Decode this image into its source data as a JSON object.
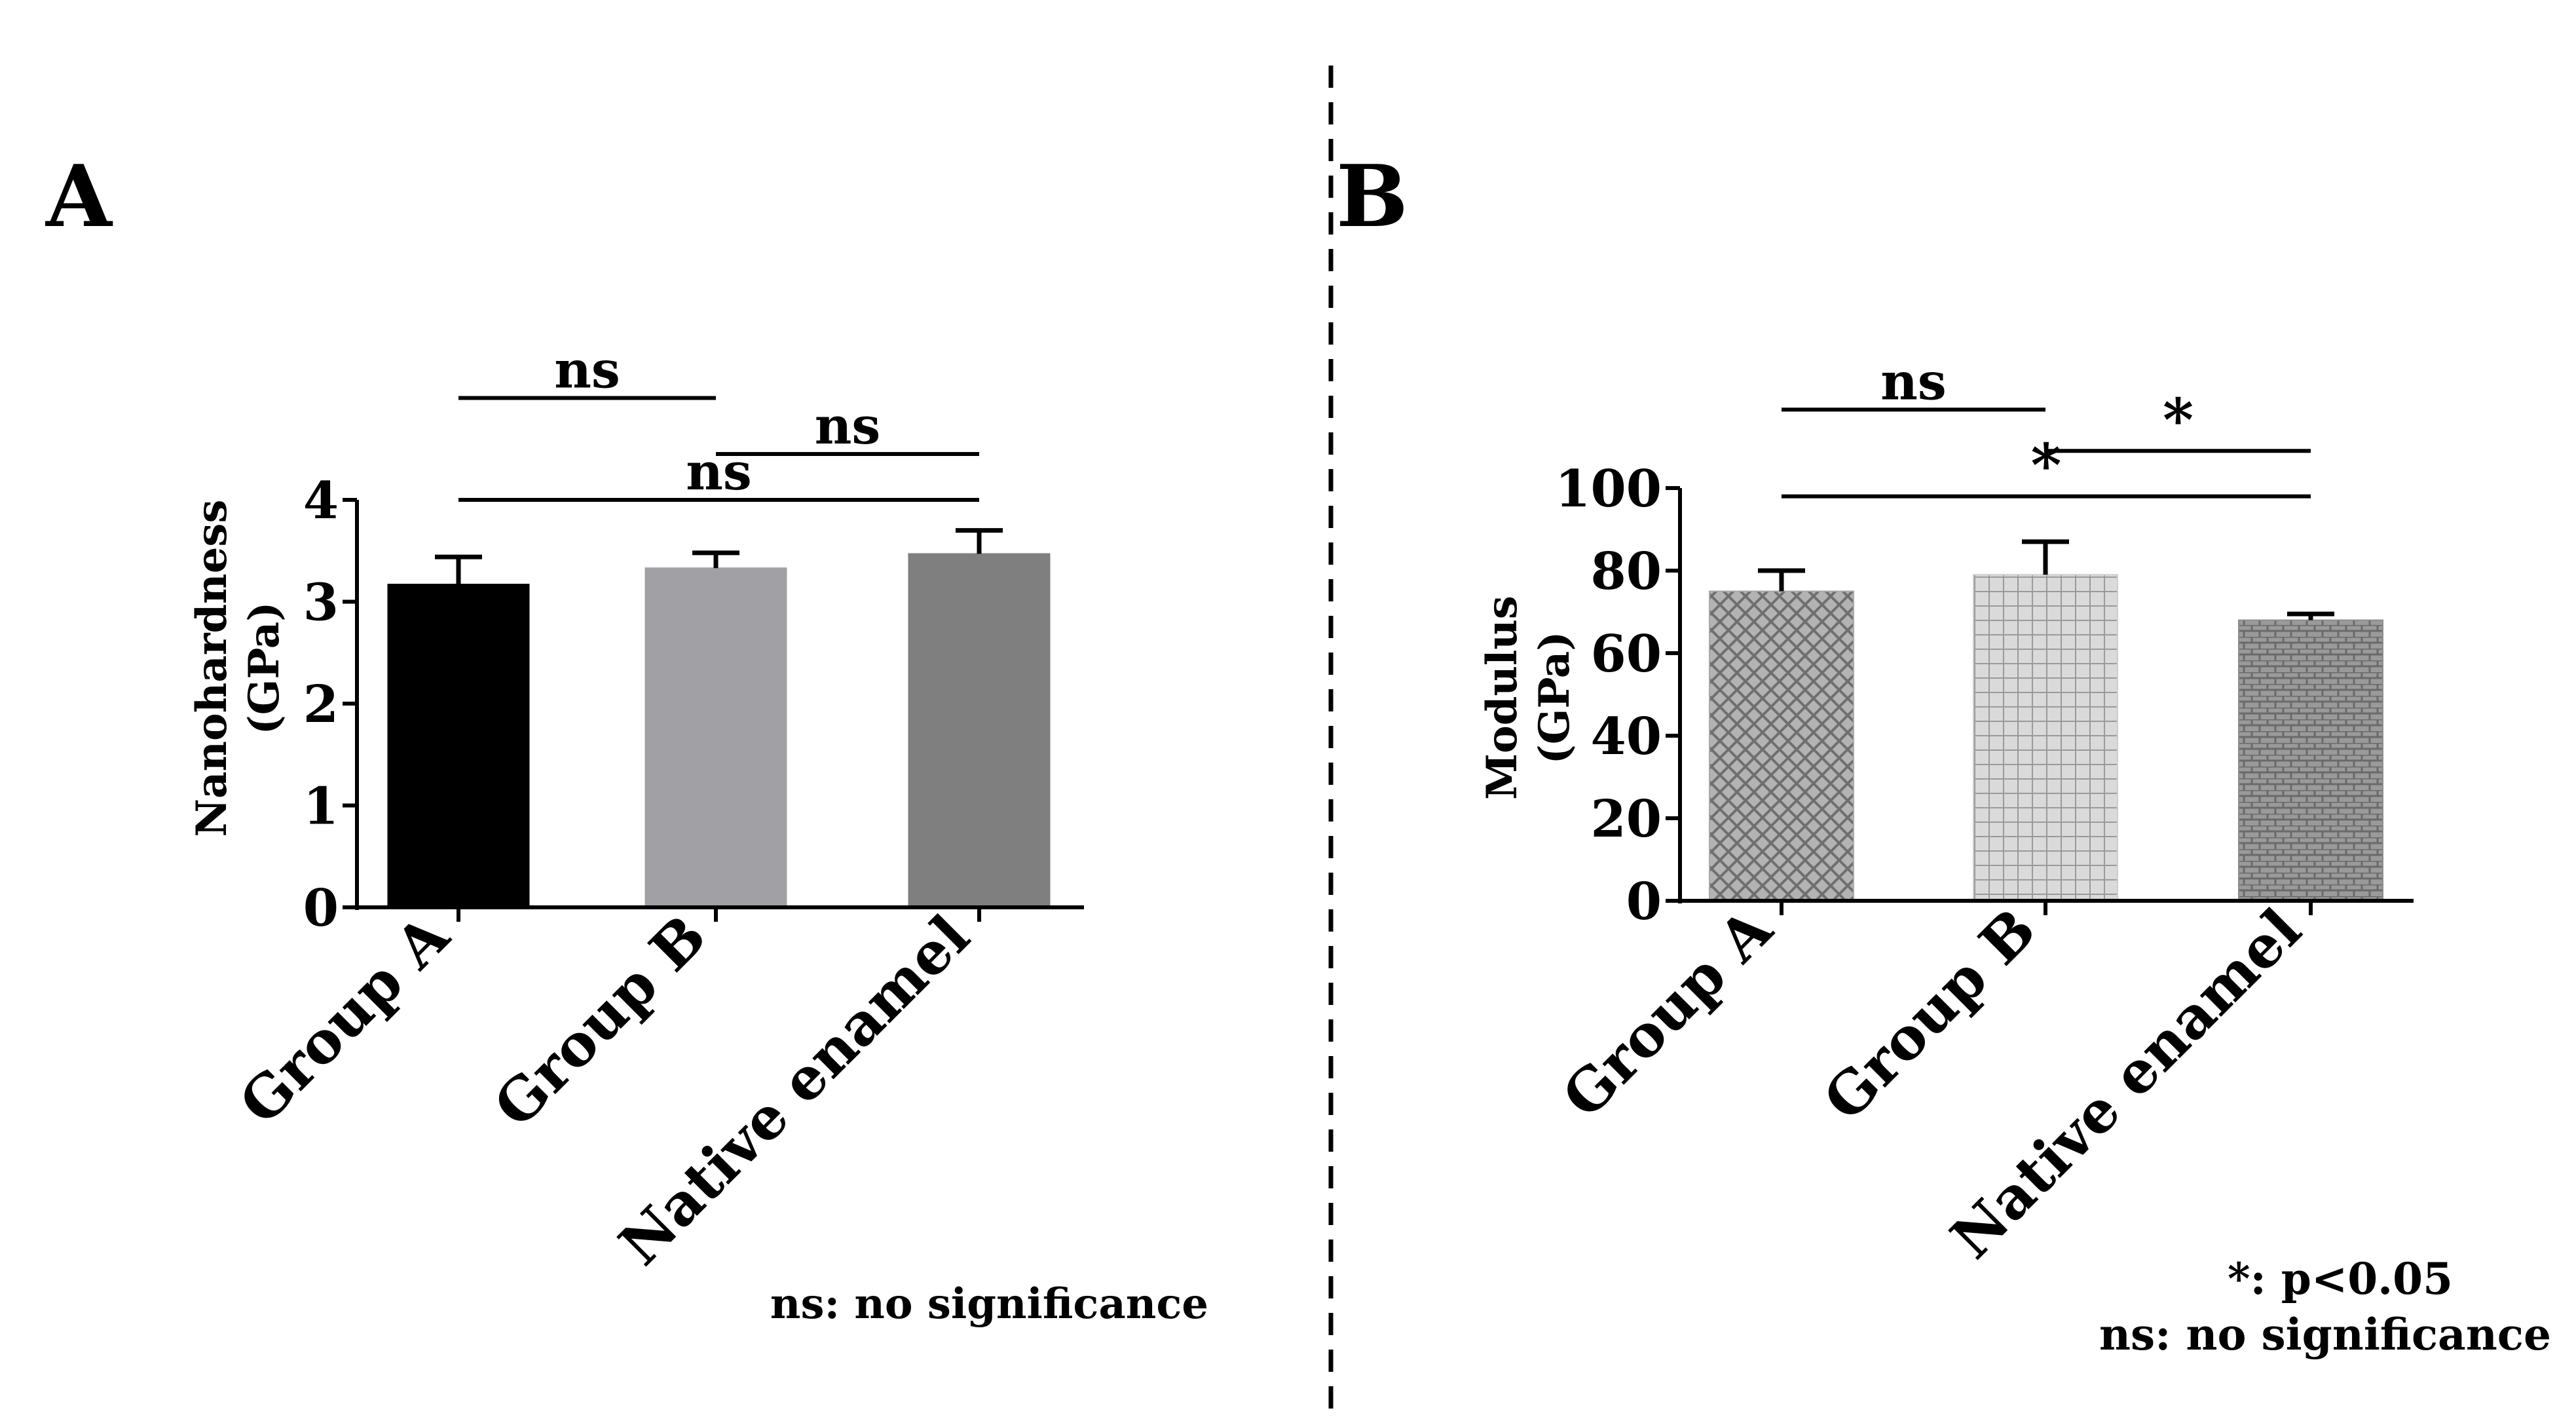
{
  "divider": {
    "style": "dashed"
  },
  "chart_data": [
    {
      "id": "A",
      "panel_label": "A",
      "type": "bar",
      "title": "",
      "ylabel_lines": [
        "Nanohardness",
        "(GPa)"
      ],
      "xlabel": "",
      "categories": [
        "Group A",
        "Group B",
        "Native enamel"
      ],
      "values": [
        3.17,
        3.33,
        3.47
      ],
      "errors": [
        0.27,
        0.15,
        0.23
      ],
      "ylim": [
        0,
        4
      ],
      "yticks": [
        "0",
        "1",
        "2",
        "3",
        "4"
      ],
      "bar_colors": [
        "#000000",
        "#a1a1a5",
        "#7f7f7f"
      ],
      "bar_patterns": [
        "solid",
        "solid",
        "solid"
      ],
      "comparisons": [
        {
          "from": 0,
          "to": 1,
          "label": "ns",
          "y": 5.0
        },
        {
          "from": 1,
          "to": 2,
          "label": "ns",
          "y": 4.45
        },
        {
          "from": 0,
          "to": 2,
          "label": "ns",
          "y": 4.0
        }
      ],
      "legend_lines": [
        "ns: no significance"
      ]
    },
    {
      "id": "B",
      "panel_label": "B",
      "type": "bar",
      "title": "",
      "ylabel_lines": [
        "Modulus",
        "(GPa)"
      ],
      "xlabel": "",
      "categories": [
        "Group A",
        "Group B",
        "Native enamel"
      ],
      "values": [
        75,
        79,
        68
      ],
      "errors": [
        5,
        8,
        1.5
      ],
      "ylim": [
        0,
        100
      ],
      "yticks": [
        "0",
        "20",
        "40",
        "60",
        "80",
        "100"
      ],
      "bar_colors": [
        "#a9a9a9",
        "#cdcdcd",
        "#8d8d8d"
      ],
      "bar_patterns": [
        "diamond",
        "grid",
        "brick"
      ],
      "comparisons": [
        {
          "from": 0,
          "to": 1,
          "label": "ns",
          "y": 119
        },
        {
          "from": 1,
          "to": 2,
          "label": "*",
          "y": 109
        },
        {
          "from": 0,
          "to": 2,
          "label": "*",
          "y": 98
        }
      ],
      "legend_lines": [
        "*: p<0.05",
        "ns: no significance"
      ]
    }
  ]
}
